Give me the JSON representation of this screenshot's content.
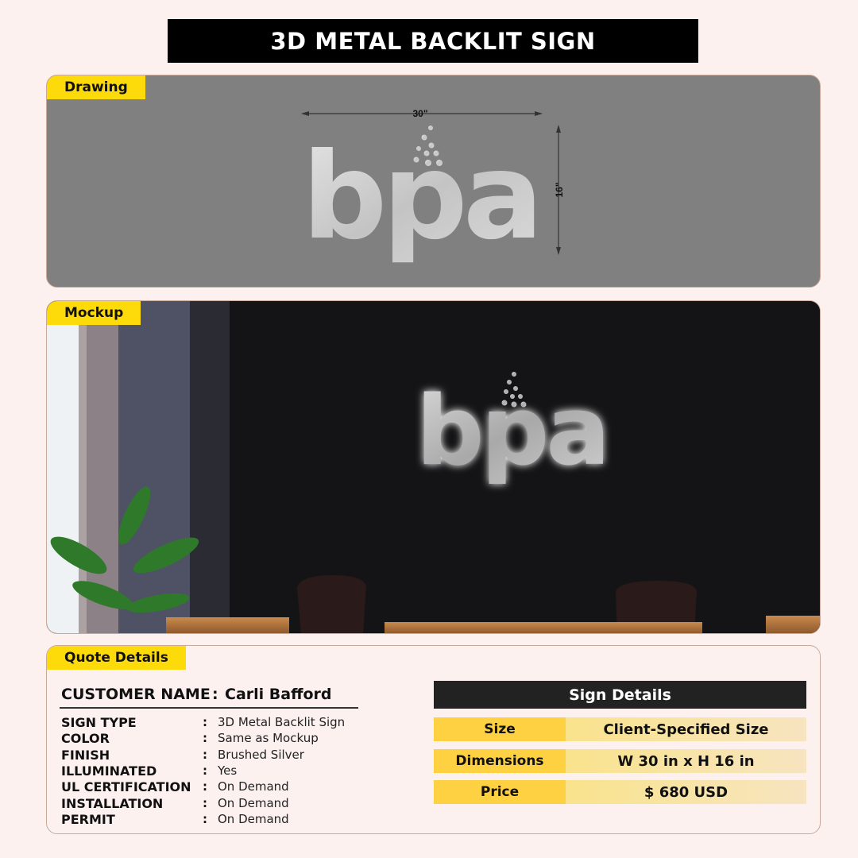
{
  "title": "3D METAL BACKLIT SIGN",
  "drawing": {
    "tag": "Drawing",
    "width_label": "30\"",
    "height_label": "16\"",
    "logo_text": "bpa"
  },
  "mockup": {
    "tag": "Mockup",
    "logo_text": "bpa"
  },
  "quote": {
    "tag": "Quote Details",
    "customer_label": "CUSTOMER NAME",
    "customer_name": "Carli Bafford",
    "fields": [
      {
        "label": "SIGN TYPE",
        "value": "3D Metal Backlit Sign"
      },
      {
        "label": "COLOR",
        "value": "Same as Mockup"
      },
      {
        "label": "FINISH",
        "value": "Brushed Silver"
      },
      {
        "label": "ILLUMINATED",
        "value": "Yes"
      },
      {
        "label": "UL CERTIFICATION",
        "value": "On Demand"
      },
      {
        "label": "INSTALLATION",
        "value": "On Demand"
      },
      {
        "label": "PERMIT",
        "value": "On Demand"
      }
    ],
    "sign_details": {
      "title": "Sign Details",
      "rows": [
        {
          "label": "Size",
          "value": "Client-Specified Size"
        },
        {
          "label": "Dimensions",
          "value": "W 30 in x H 16 in"
        },
        {
          "label": "Price",
          "value": "$ 680 USD"
        }
      ]
    }
  },
  "colors": {
    "accent": "#fddb0b",
    "dark": "#222222",
    "background": "#fdf1ef"
  }
}
